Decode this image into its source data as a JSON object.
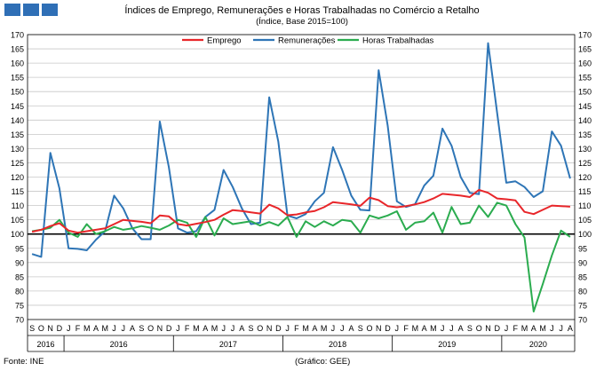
{
  "title": "Índices de Emprego, Remunerações e Horas Trabalhadas no Comércio a Retalho",
  "subtitle": "(Índice, Base 2015=100)",
  "source": "Fonte: INE",
  "credit": "(Gráfico: GEE)",
  "colors": {
    "emprego": "#e8262a",
    "remuneracoes": "#2e75b6",
    "horas": "#2bac4f",
    "grid": "#c8c8c8",
    "logo": "#2f6fb6"
  },
  "icon": "ine-logo-blocks",
  "chart_data": {
    "type": "line",
    "months": [
      "S",
      "O",
      "N",
      "D",
      "J",
      "F",
      "M",
      "A",
      "M",
      "J",
      "J",
      "A",
      "S",
      "O",
      "N",
      "D",
      "J",
      "F",
      "M",
      "A",
      "M",
      "J",
      "J",
      "A",
      "S",
      "O",
      "N",
      "D",
      "J",
      "F",
      "M",
      "A",
      "M",
      "J",
      "J",
      "A",
      "S",
      "O",
      "N",
      "D",
      "J",
      "F",
      "M",
      "A",
      "M",
      "J",
      "J",
      "A",
      "S",
      "O",
      "N",
      "D",
      "J",
      "F",
      "M",
      "A",
      "M",
      "J",
      "J",
      "A"
    ],
    "years": [
      {
        "label": "2016",
        "start": 0,
        "end": 4
      },
      {
        "label": "2016",
        "start": 4,
        "end": 16
      },
      {
        "label": "2017",
        "start": 16,
        "end": 28
      },
      {
        "label": "2018",
        "start": 28,
        "end": 40
      },
      {
        "label": "2019",
        "start": 40,
        "end": 52
      },
      {
        "label": "2020",
        "start": 52,
        "end": 60
      }
    ],
    "ylim": [
      70,
      170
    ],
    "yticks": [
      70,
      75,
      80,
      85,
      90,
      95,
      100,
      105,
      110,
      115,
      120,
      125,
      130,
      135,
      140,
      145,
      150,
      155,
      160,
      165,
      170
    ],
    "reference_line": 100,
    "grid": true,
    "legend_position": "top",
    "series": [
      {
        "name": "Emprego",
        "key": "emprego",
        "values": [
          100.8,
          101.5,
          102.8,
          103.8,
          101.2,
          100.5,
          101.0,
          101.5,
          102.0,
          103.5,
          105.0,
          104.6,
          104.3,
          103.8,
          106.5,
          106.2,
          103.5,
          103.0,
          103.6,
          104.2,
          105.0,
          106.8,
          108.4,
          108.1,
          107.6,
          107.2,
          110.3,
          109.0,
          106.6,
          106.9,
          107.6,
          108.1,
          109.4,
          111.2,
          110.8,
          110.4,
          109.9,
          112.8,
          111.9,
          109.8,
          109.4,
          109.8,
          110.4,
          111.2,
          112.5,
          114.1,
          113.8,
          113.5,
          113.0,
          115.5,
          114.5,
          112.5,
          112.2,
          111.8,
          107.8,
          107.0,
          108.5,
          110.0,
          109.8,
          109.6
        ]
      },
      {
        "name": "Remunerações",
        "key": "remuneracoes",
        "values": [
          93.0,
          92.0,
          128.5,
          116.0,
          95.0,
          94.8,
          94.3,
          98.0,
          101.0,
          113.5,
          109.0,
          102.0,
          98.2,
          98.2,
          139.5,
          123.5,
          102.0,
          100.5,
          101.0,
          106.0,
          108.5,
          122.5,
          116.5,
          109.0,
          103.5,
          104.0,
          148.0,
          132.5,
          106.5,
          105.5,
          107.0,
          111.5,
          114.5,
          130.5,
          122.5,
          113.5,
          108.5,
          108.3,
          157.5,
          138.0,
          111.5,
          109.5,
          110.5,
          117.0,
          120.5,
          137.0,
          131.0,
          120.0,
          114.5,
          114.0,
          167.0,
          142.5,
          118.0,
          118.5,
          116.5,
          113.0,
          115.0,
          136.0,
          131.0,
          119.5
        ]
      },
      {
        "name": "Horas Trabalhadas",
        "key": "horas",
        "values": [
          101.0,
          101.5,
          102.2,
          105.0,
          100.5,
          99.0,
          103.5,
          100.0,
          101.0,
          102.5,
          101.5,
          102.0,
          102.8,
          102.2,
          101.5,
          103.0,
          105.0,
          104.0,
          99.0,
          106.0,
          99.5,
          105.5,
          103.5,
          104.0,
          104.5,
          103.0,
          104.2,
          103.0,
          106.0,
          99.0,
          104.5,
          102.5,
          104.5,
          103.0,
          105.0,
          104.5,
          100.5,
          106.5,
          105.5,
          106.5,
          108.0,
          101.5,
          104.0,
          104.5,
          107.5,
          100.5,
          109.5,
          103.5,
          104.0,
          110.0,
          106.0,
          111.0,
          110.0,
          103.5,
          98.8,
          72.8,
          82.5,
          92.5,
          101.2,
          99.0
        ]
      }
    ]
  }
}
